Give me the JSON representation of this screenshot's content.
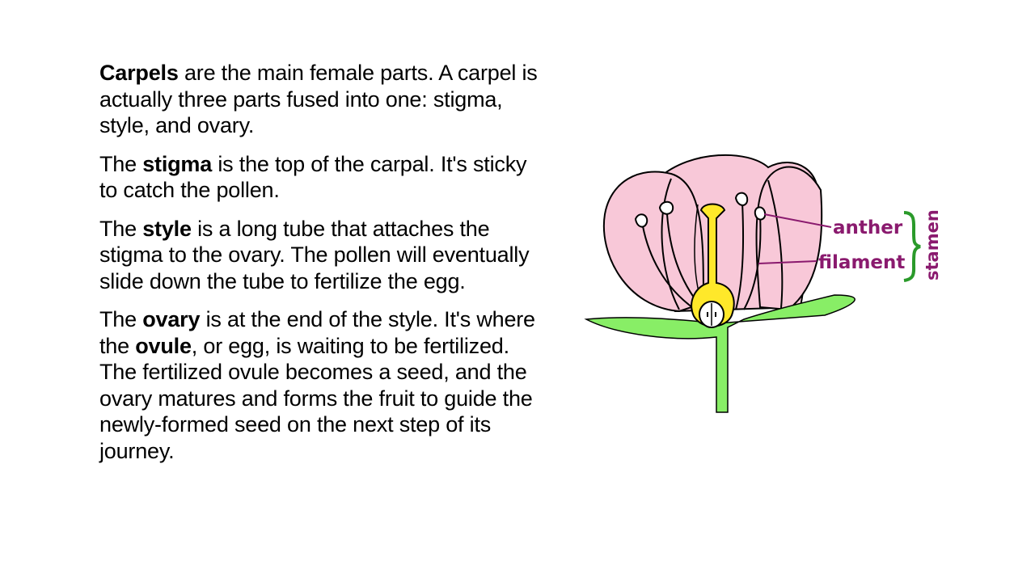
{
  "slide": {
    "paragraphs": [
      {
        "segments": [
          {
            "text": "Carpels",
            "bold": true
          },
          {
            "text": " are the main female parts. A carpel is actually three parts fused into one: stigma, style, and ovary.",
            "bold": false
          }
        ]
      },
      {
        "segments": [
          {
            "text": "The ",
            "bold": false
          },
          {
            "text": "stigma",
            "bold": true
          },
          {
            "text": " is the top of the carpal. It's sticky to catch the pollen.",
            "bold": false
          }
        ]
      },
      {
        "segments": [
          {
            "text": "The ",
            "bold": false
          },
          {
            "text": "style",
            "bold": true
          },
          {
            "text": " is a long tube that attaches the stigma to the ovary. The pollen will eventually slide down the tube to fertilize the egg.",
            "bold": false
          }
        ]
      },
      {
        "segments": [
          {
            "text": "The ",
            "bold": false
          },
          {
            "text": "ovary",
            "bold": true
          },
          {
            "text": " is at the end of the style. It's where the ",
            "bold": false
          },
          {
            "text": "ovule",
            "bold": true
          },
          {
            "text": ", or egg, is waiting to be fertilized. The fertilized ovule becomes a seed, and the ovary matures and forms the fruit to guide the newly-formed seed on the next step of its journey.",
            "bold": false
          }
        ]
      }
    ]
  },
  "diagram": {
    "labels": {
      "anther": "anther",
      "filament": "filament",
      "stamen": "stamen"
    },
    "colors": {
      "petal": "#f8c8d8",
      "stem": "#88ee66",
      "carpel": "#ffe82a",
      "label": "#8a1a6e",
      "brace": "#2a9a2a"
    }
  }
}
